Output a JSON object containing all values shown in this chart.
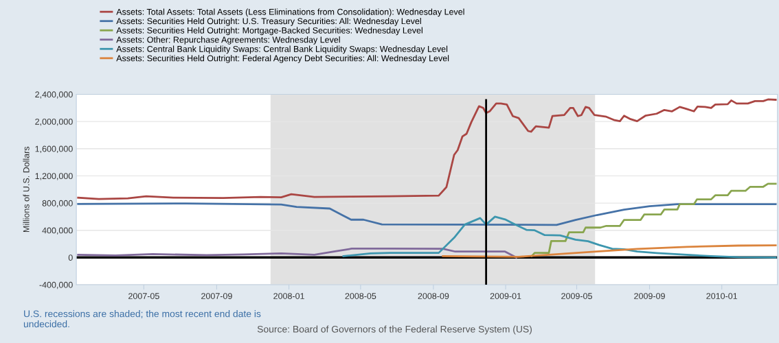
{
  "chart_data": {
    "type": "line",
    "ylabel": "Millions of U.S. Dollars",
    "xlim": [
      "2007-01-07",
      "2010-04-05"
    ],
    "xticks": [
      "2007-05",
      "2007-09",
      "2008-01",
      "2008-05",
      "2008-09",
      "2009-01",
      "2009-05",
      "2009-09",
      "2010-01"
    ],
    "ylim": [
      -400000,
      2400000
    ],
    "yticks": [
      {
        "value": -400000,
        "label": "-400,000"
      },
      0,
      {
        "value": 400000,
        "label": "400,000"
      },
      {
        "value": 800000,
        "label": "800,000"
      },
      {
        "value": 1200000,
        "label": "1,200,000"
      },
      {
        "value": 1600000,
        "label": "1,600,000"
      },
      {
        "value": 2000000,
        "label": "2,000,000"
      },
      {
        "value": 2400000,
        "label": "2,400,000"
      }
    ],
    "grid": "y",
    "legend": "top left",
    "line_style": "solid",
    "marker": "none",
    "bands": [
      {
        "axis": "x",
        "from": "2007-12-01",
        "to": "2009-06-01",
        "color": "#e1e1e1"
      }
    ],
    "ref_lines": [
      {
        "axis": "y",
        "value": 0,
        "color": "#000000"
      },
      {
        "axis": "x",
        "value": "2008-11-29",
        "color": "#000000"
      }
    ],
    "annotations": [
      "U.S. recessions are shaded; the most recent end date is undecided.",
      "Source: Board of Governors of the Federal Reserve System (US)"
    ],
    "series": [
      {
        "name": "Assets: Total Assets: Total Assets (Less Eliminations from Consolidation): Wednesday Level",
        "color": "#aa4643",
        "x": [
          "2007-01-10",
          "2007-02-14",
          "2007-04-04",
          "2007-05-05",
          "2007-06-20",
          "2007-09-12",
          "2007-11-14",
          "2007-12-19",
          "2008-01-05",
          "2008-02-13",
          "2008-04-16",
          "2008-06-18",
          "2008-09-10",
          "2008-09-23",
          "2008-10-06",
          "2008-10-12",
          "2008-10-20",
          "2008-10-27",
          "2008-11-04",
          "2008-11-17",
          "2008-11-24",
          "2008-11-29",
          "2008-12-05",
          "2008-12-16",
          "2008-12-24",
          "2009-01-03",
          "2009-01-13",
          "2009-01-23",
          "2009-02-08",
          "2009-02-13",
          "2009-02-21",
          "2009-03-15",
          "2009-03-21",
          "2009-04-10",
          "2009-04-20",
          "2009-04-25",
          "2009-05-03",
          "2009-05-09",
          "2009-05-16",
          "2009-05-22",
          "2009-05-31",
          "2009-06-20",
          "2009-07-04",
          "2009-07-13",
          "2009-07-20",
          "2009-07-31",
          "2009-08-11",
          "2009-08-25",
          "2009-09-13",
          "2009-09-26",
          "2009-10-09",
          "2009-10-22",
          "2009-11-01",
          "2009-11-15",
          "2009-11-21",
          "2009-12-04",
          "2009-12-14",
          "2009-12-21",
          "2010-01-11",
          "2010-01-17",
          "2010-01-26",
          "2010-02-14",
          "2010-02-26",
          "2010-03-12",
          "2010-03-20",
          "2010-04-02"
        ],
        "values": [
          880000,
          860000,
          870000,
          900000,
          880000,
          875000,
          890000,
          885000,
          930000,
          890000,
          895000,
          900000,
          910000,
          1035000,
          1510000,
          1580000,
          1780000,
          1820000,
          1990000,
          2225000,
          2200000,
          2125000,
          2150000,
          2265000,
          2265000,
          2250000,
          2080000,
          2050000,
          1860000,
          1850000,
          1930000,
          1910000,
          2080000,
          2095000,
          2200000,
          2200000,
          2080000,
          2095000,
          2215000,
          2200000,
          2095000,
          2070000,
          2020000,
          2005000,
          2085000,
          2035000,
          2005000,
          2085000,
          2115000,
          2170000,
          2150000,
          2215000,
          2190000,
          2150000,
          2220000,
          2215000,
          2200000,
          2250000,
          2255000,
          2310000,
          2265000,
          2265000,
          2300000,
          2300000,
          2325000,
          2320000
        ]
      },
      {
        "name": "Assets: Securities Held Outright: U.S. Treasury Securities: All: Wednesday Level",
        "color": "#4572a7",
        "x": [
          "2007-01-10",
          "2007-07-11",
          "2007-12-19",
          "2008-01-14",
          "2008-03-10",
          "2008-04-01",
          "2008-04-15",
          "2008-05-06",
          "2008-06-06",
          "2009-03-28",
          "2009-04-29",
          "2009-06-04",
          "2009-07-20",
          "2009-09-01",
          "2009-10-18",
          "2010-04-02"
        ],
        "values": [
          786000,
          795000,
          780000,
          745000,
          720000,
          620000,
          556000,
          556000,
          487000,
          480000,
          553000,
          624000,
          703000,
          755000,
          784000,
          784000
        ]
      },
      {
        "name": "Assets: Securities Held Outright: Mortgage-Backed Securities: Wednesday Level",
        "color": "#89a54e",
        "x": [
          "2009-02-14",
          "2009-02-19",
          "2009-03-15",
          "2009-03-19",
          "2009-04-12",
          "2009-04-18",
          "2009-05-12",
          "2009-05-16",
          "2009-06-10",
          "2009-06-20",
          "2009-07-13",
          "2009-07-20",
          "2009-08-17",
          "2009-08-23",
          "2009-09-20",
          "2009-09-26",
          "2009-10-18",
          "2009-10-22",
          "2009-11-15",
          "2009-11-20",
          "2009-12-14",
          "2009-12-21",
          "2010-01-11",
          "2010-01-17",
          "2010-02-10",
          "2010-02-18",
          "2010-03-12",
          "2010-03-20",
          "2010-04-02"
        ],
        "values": [
          20000,
          68000,
          68000,
          242000,
          242000,
          370000,
          370000,
          440000,
          440000,
          465000,
          465000,
          553000,
          553000,
          632000,
          632000,
          706000,
          706000,
          784000,
          784000,
          855000,
          855000,
          915000,
          915000,
          980000,
          980000,
          1040000,
          1040000,
          1085000,
          1085000
        ]
      },
      {
        "name": "Assets: Other: Repurchase Agreements: Wednesday Level",
        "color": "#80699b",
        "x": [
          "2007-01-10",
          "2007-03-14",
          "2007-05-16",
          "2007-08-15",
          "2007-10-17",
          "2007-12-19",
          "2008-02-13",
          "2008-03-19",
          "2008-04-16",
          "2008-06-18",
          "2008-09-17",
          "2008-10-08",
          "2008-12-31",
          "2009-01-19"
        ],
        "values": [
          40000,
          30000,
          50000,
          35000,
          45000,
          60000,
          40000,
          90000,
          130000,
          130000,
          128000,
          87000,
          87000,
          0
        ]
      },
      {
        "name": "Assets: Central Bank Liquidity Swaps: Central Bank Liquidity Swaps: Wednesday Level",
        "color": "#3d96ae",
        "x": [
          "2008-04-02",
          "2008-05-18",
          "2008-06-20",
          "2008-09-10",
          "2008-10-06",
          "2008-10-24",
          "2008-11-19",
          "2008-11-29",
          "2008-12-14",
          "2008-12-31",
          "2009-01-13",
          "2009-02-05",
          "2009-02-19",
          "2009-03-08",
          "2009-04-03",
          "2009-04-29",
          "2009-05-20",
          "2009-06-08",
          "2009-06-30",
          "2009-07-20",
          "2009-08-11",
          "2009-09-13",
          "2009-11-03",
          "2009-12-14",
          "2010-01-29",
          "2010-04-02"
        ],
        "values": [
          20000,
          60000,
          68000,
          68000,
          290000,
          484000,
          580000,
          484000,
          600000,
          560000,
          503000,
          406000,
          400000,
          330000,
          325000,
          263000,
          240000,
          184000,
          128000,
          120000,
          87000,
          65000,
          40000,
          20000,
          5000,
          0
        ]
      },
      {
        "name": "Assets: Securities Held Outright: Federal Agency Debt Securities: All: Wednesday Level",
        "color": "#db843d",
        "x": [
          "2008-09-17",
          "2009-01-23",
          "2009-06-04",
          "2009-08-11",
          "2009-11-03",
          "2010-01-29",
          "2010-04-02"
        ],
        "values": [
          20000,
          10000,
          87000,
          125000,
          157000,
          175000,
          178000
        ]
      }
    ]
  }
}
